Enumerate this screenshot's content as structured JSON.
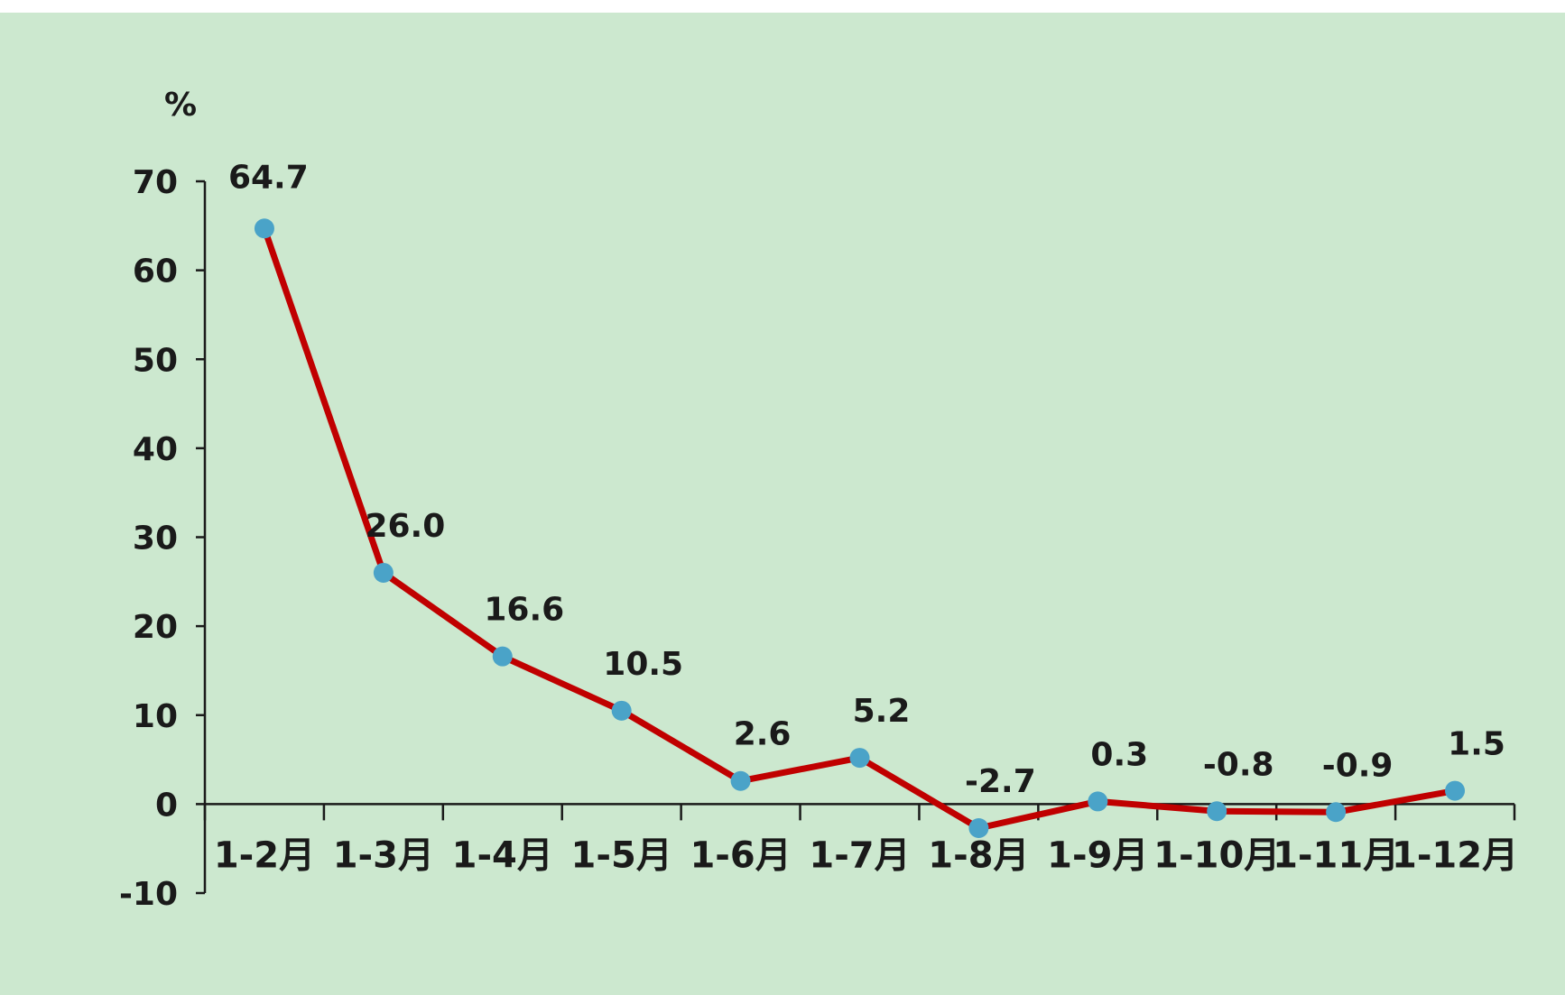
{
  "chart_data": {
    "type": "line",
    "title": "",
    "ylabel": "%",
    "xlabel": "",
    "categories": [
      "1-2月",
      "1-3月",
      "1-4月",
      "1-5月",
      "1-6月",
      "1-7月",
      "1-8月",
      "1-9月",
      "1-10月",
      "1-11月",
      "1-12月"
    ],
    "series": [
      {
        "values": [
          64.7,
          26.0,
          16.6,
          10.5,
          2.6,
          5.2,
          -2.7,
          0.3,
          -0.8,
          -0.9,
          1.5
        ],
        "data_labels": [
          "64.7",
          "26.0",
          "16.6",
          "10.5",
          "2.6",
          "5.2",
          "-2.7",
          "0.3",
          "-0.8",
          "-0.9",
          "1.5"
        ],
        "color": "#c00000",
        "marker_color": "#4aa3c8"
      }
    ],
    "ylim": [
      -10,
      70
    ],
    "yticks": [
      "-10",
      "0",
      "10",
      "20",
      "30",
      "40",
      "50",
      "60",
      "70"
    ],
    "grid": false,
    "legend": "none"
  },
  "colors": {
    "background": "#cce8cf",
    "line": "#c00000",
    "marker": "#4aa3c8",
    "axis": "#1a1a1a"
  }
}
